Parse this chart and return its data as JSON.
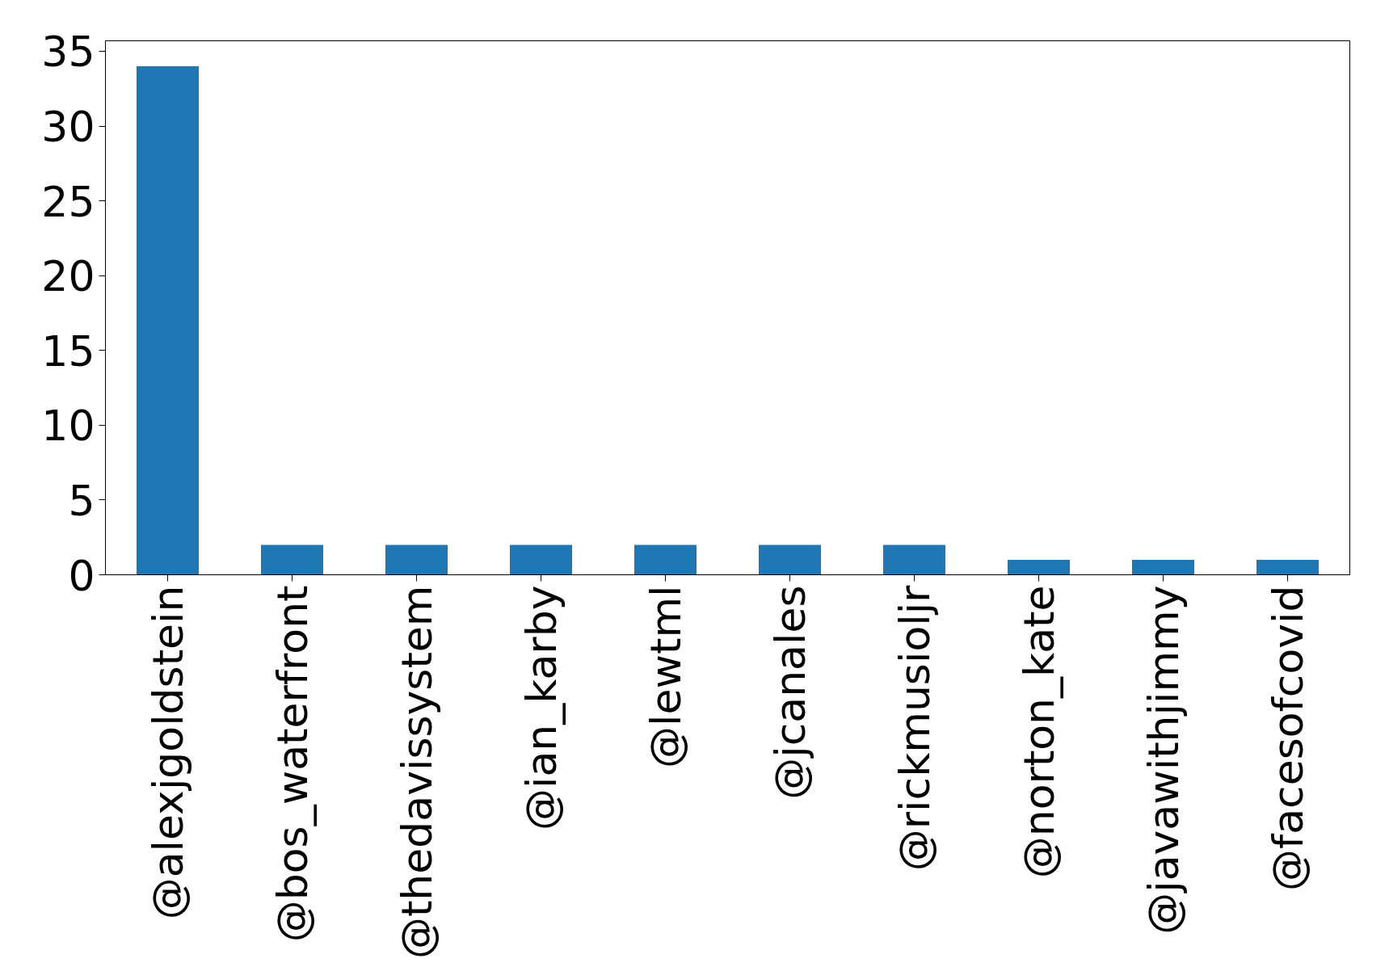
{
  "chart_data": {
    "type": "bar",
    "categories": [
      "@alexjgoldstein",
      "@bos_waterfront",
      "@thedavissystem",
      "@ian_karby",
      "@lewtml",
      "@jcanales",
      "@rickmusioljr",
      "@norton_kate",
      "@javawithjimmy",
      "@facesofcovid"
    ],
    "values": [
      34,
      2,
      2,
      2,
      2,
      2,
      2,
      1,
      1,
      1
    ],
    "color": "#1f77b4",
    "ylim": [
      0,
      35.7
    ],
    "yticks": [
      0,
      5,
      10,
      15,
      20,
      25,
      30,
      35
    ],
    "grid": false
  }
}
